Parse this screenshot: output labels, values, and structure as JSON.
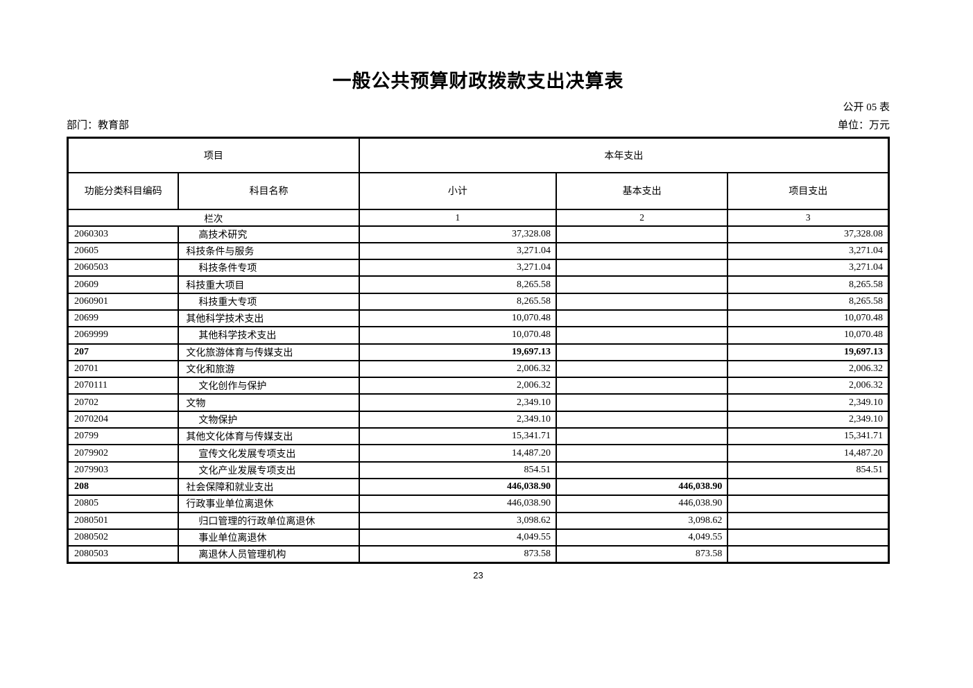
{
  "page": {
    "title": "一般公共预算财政拨款支出决算表",
    "form_code": "公开 05 表",
    "department": "部门：教育部",
    "unit": "单位：万元",
    "page_number": "23"
  },
  "table": {
    "header": {
      "group_project": "项目",
      "group_current_year": "本年支出",
      "columns": [
        "功能分类科目编码",
        "科目名称",
        "小计",
        "基本支出",
        "项目支出"
      ],
      "lanci_label": "栏次",
      "lanci_numbers": [
        "1",
        "2",
        "3"
      ]
    },
    "rows": [
      {
        "code": "2060303",
        "name": "高技术研究",
        "indent": 2,
        "subtotal": "37,328.08",
        "basic": "",
        "project": "37,328.08",
        "bold": false
      },
      {
        "code": "20605",
        "name": "科技条件与服务",
        "indent": 1,
        "subtotal": "3,271.04",
        "basic": "",
        "project": "3,271.04",
        "bold": false
      },
      {
        "code": "2060503",
        "name": "科技条件专项",
        "indent": 2,
        "subtotal": "3,271.04",
        "basic": "",
        "project": "3,271.04",
        "bold": false
      },
      {
        "code": "20609",
        "name": "科技重大项目",
        "indent": 1,
        "subtotal": "8,265.58",
        "basic": "",
        "project": "8,265.58",
        "bold": false
      },
      {
        "code": "2060901",
        "name": "科技重大专项",
        "indent": 2,
        "subtotal": "8,265.58",
        "basic": "",
        "project": "8,265.58",
        "bold": false
      },
      {
        "code": "20699",
        "name": "其他科学技术支出",
        "indent": 1,
        "subtotal": "10,070.48",
        "basic": "",
        "project": "10,070.48",
        "bold": false
      },
      {
        "code": "2069999",
        "name": "其他科学技术支出",
        "indent": 2,
        "subtotal": "10,070.48",
        "basic": "",
        "project": "10,070.48",
        "bold": false
      },
      {
        "code": "207",
        "name": "文化旅游体育与传媒支出",
        "indent": 1,
        "subtotal": "19,697.13",
        "basic": "",
        "project": "19,697.13",
        "bold": true
      },
      {
        "code": "20701",
        "name": "文化和旅游",
        "indent": 1,
        "subtotal": "2,006.32",
        "basic": "",
        "project": "2,006.32",
        "bold": false
      },
      {
        "code": "2070111",
        "name": "文化创作与保护",
        "indent": 2,
        "subtotal": "2,006.32",
        "basic": "",
        "project": "2,006.32",
        "bold": false
      },
      {
        "code": "20702",
        "name": "文物",
        "indent": 1,
        "subtotal": "2,349.10",
        "basic": "",
        "project": "2,349.10",
        "bold": false
      },
      {
        "code": "2070204",
        "name": "文物保护",
        "indent": 2,
        "subtotal": "2,349.10",
        "basic": "",
        "project": "2,349.10",
        "bold": false
      },
      {
        "code": "20799",
        "name": "其他文化体育与传媒支出",
        "indent": 1,
        "subtotal": "15,341.71",
        "basic": "",
        "project": "15,341.71",
        "bold": false
      },
      {
        "code": "2079902",
        "name": "宣传文化发展专项支出",
        "indent": 2,
        "subtotal": "14,487.20",
        "basic": "",
        "project": "14,487.20",
        "bold": false
      },
      {
        "code": "2079903",
        "name": "文化产业发展专项支出",
        "indent": 2,
        "subtotal": "854.51",
        "basic": "",
        "project": "854.51",
        "bold": false
      },
      {
        "code": "208",
        "name": "社会保障和就业支出",
        "indent": 1,
        "subtotal": "446,038.90",
        "basic": "446,038.90",
        "project": "",
        "bold": true
      },
      {
        "code": "20805",
        "name": "行政事业单位离退休",
        "indent": 1,
        "subtotal": "446,038.90",
        "basic": "446,038.90",
        "project": "",
        "bold": false
      },
      {
        "code": "2080501",
        "name": "归口管理的行政单位离退休",
        "indent": 2,
        "subtotal": "3,098.62",
        "basic": "3,098.62",
        "project": "",
        "bold": false
      },
      {
        "code": "2080502",
        "name": "事业单位离退休",
        "indent": 2,
        "subtotal": "4,049.55",
        "basic": "4,049.55",
        "project": "",
        "bold": false
      },
      {
        "code": "2080503",
        "name": "离退休人员管理机构",
        "indent": 2,
        "subtotal": "873.58",
        "basic": "873.58",
        "project": "",
        "bold": false
      }
    ]
  },
  "colors": {
    "text": "#000000",
    "border": "#000000",
    "background": "#ffffff"
  }
}
